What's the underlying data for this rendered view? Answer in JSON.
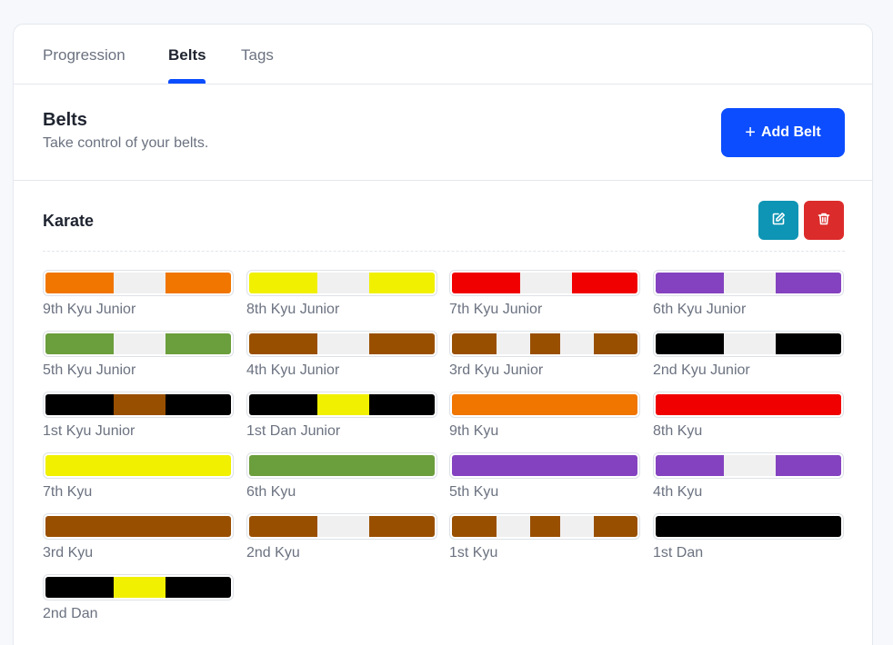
{
  "tabs": [
    {
      "label": "Progression",
      "active": false
    },
    {
      "label": "Belts",
      "active": true
    },
    {
      "label": "Tags",
      "active": false
    }
  ],
  "header": {
    "title": "Belts",
    "subtitle": "Take control of your belts.",
    "add_button": "Add Belt",
    "add_icon": "plus-icon"
  },
  "colors": {
    "primary": "#0b4dff",
    "edit": "#0e94b4",
    "delete": "#dc2b2b"
  },
  "group": {
    "name": "Karate",
    "edit_icon": "edit-icon",
    "delete_icon": "trash-icon",
    "belts": [
      {
        "name": "9th Kyu Junior",
        "stripes": [
          "#ff7d00",
          "#ffffff",
          "#ff7d00"
        ]
      },
      {
        "name": "8th Kyu Junior",
        "stripes": [
          "#ffff00",
          "#ffffff",
          "#ffff00"
        ]
      },
      {
        "name": "7th Kyu Junior",
        "stripes": [
          "#ff0000",
          "#ffffff",
          "#ff0000"
        ]
      },
      {
        "name": "6th Kyu Junior",
        "stripes": [
          "#8c46cc",
          "#ffffff",
          "#8c46cc"
        ]
      },
      {
        "name": "5th Kyu Junior",
        "stripes": [
          "#72a840",
          "#ffffff",
          "#72a840"
        ]
      },
      {
        "name": "4th Kyu Junior",
        "stripes": [
          "#a35400",
          "#ffffff",
          "#a35400"
        ]
      },
      {
        "name": "3rd Kyu Junior",
        "stripes": [
          "#a35400",
          "#ffffff",
          "#a35400",
          "#ffffff",
          "#a35400"
        ]
      },
      {
        "name": "2nd Kyu Junior",
        "stripes": [
          "#000000",
          "#ffffff",
          "#000000"
        ]
      },
      {
        "name": "1st Kyu Junior",
        "stripes": [
          "#000000",
          "#a35400",
          "#000000"
        ]
      },
      {
        "name": "1st Dan Junior",
        "stripes": [
          "#000000",
          "#ffff00",
          "#000000"
        ]
      },
      {
        "name": "9th Kyu",
        "stripes": [
          "#ff7d00"
        ]
      },
      {
        "name": "8th Kyu",
        "stripes": [
          "#ff0000"
        ]
      },
      {
        "name": "7th Kyu",
        "stripes": [
          "#ffff00"
        ]
      },
      {
        "name": "6th Kyu",
        "stripes": [
          "#72a840"
        ]
      },
      {
        "name": "5th Kyu",
        "stripes": [
          "#8c46cc"
        ]
      },
      {
        "name": "4th Kyu",
        "stripes": [
          "#8c46cc",
          "#ffffff",
          "#8c46cc"
        ]
      },
      {
        "name": "3rd Kyu",
        "stripes": [
          "#a35400"
        ]
      },
      {
        "name": "2nd Kyu",
        "stripes": [
          "#a35400",
          "#ffffff",
          "#a35400"
        ]
      },
      {
        "name": "1st Kyu",
        "stripes": [
          "#a35400",
          "#ffffff",
          "#a35400",
          "#ffffff",
          "#a35400"
        ]
      },
      {
        "name": "1st Dan",
        "stripes": [
          "#000000"
        ]
      },
      {
        "name": "2nd Dan",
        "stripes": [
          "#000000",
          "#ffff00",
          "#000000"
        ]
      }
    ]
  }
}
